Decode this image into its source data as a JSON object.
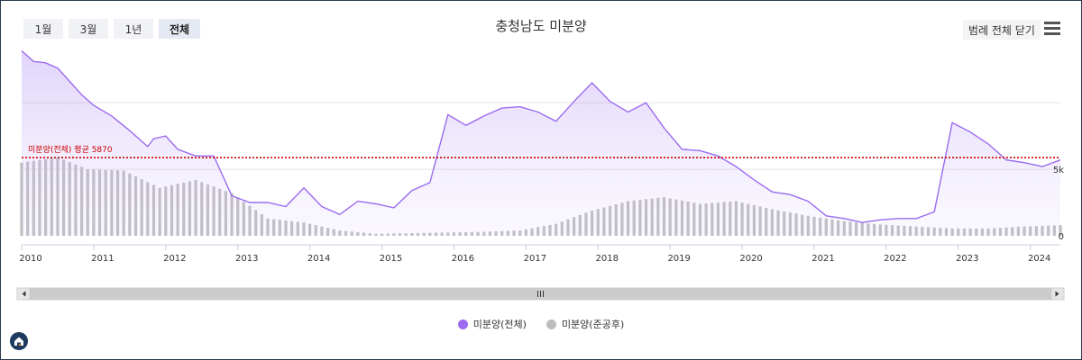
{
  "tabs": [
    {
      "label": "1월",
      "active": false
    },
    {
      "label": "3월",
      "active": false
    },
    {
      "label": "1년",
      "active": false
    },
    {
      "label": "전체",
      "active": true
    }
  ],
  "legend_toggle_label": "범례 전체 닫기",
  "menu_icon": "hamburger-icon",
  "home_icon": "home-icon",
  "colors": {
    "series_total": "#9b6bf0",
    "series_completed": "#bdbdbd",
    "average_line": "#cc0000"
  },
  "chart_data": {
    "type": "line",
    "title": "충청남도 미분양",
    "x_start": "2010-01",
    "x_end": "2024-06",
    "year_ticks": [
      "2010",
      "2011",
      "2012",
      "2013",
      "2014",
      "2015",
      "2016",
      "2017",
      "2018",
      "2019",
      "2020",
      "2021",
      "2022",
      "2023",
      "2024"
    ],
    "y_ticks": [
      {
        "value": 0,
        "label": "0"
      },
      {
        "value": 5000,
        "label": "5k"
      }
    ],
    "ylim": [
      0,
      14000
    ],
    "grid": true,
    "legend_position": "bottom-center",
    "average": {
      "value": 5870,
      "label": "미분양(전체) 평균 5870"
    },
    "series": [
      {
        "name": "미분양(전체)",
        "type": "area",
        "color": "#9b6bf0",
        "points": [
          [
            "2010-01",
            13900
          ],
          [
            "2010-03",
            13100
          ],
          [
            "2010-05",
            13000
          ],
          [
            "2010-07",
            12600
          ],
          [
            "2010-09",
            11600
          ],
          [
            "2010-11",
            10600
          ],
          [
            "2011-01",
            9800
          ],
          [
            "2011-04",
            9000
          ],
          [
            "2011-07",
            7900
          ],
          [
            "2011-10",
            6700
          ],
          [
            "2011-11",
            7300
          ],
          [
            "2012-01",
            7500
          ],
          [
            "2012-03",
            6500
          ],
          [
            "2012-06",
            6000
          ],
          [
            "2012-09",
            6000
          ],
          [
            "2012-12",
            3000
          ],
          [
            "2013-03",
            2500
          ],
          [
            "2013-06",
            2500
          ],
          [
            "2013-09",
            2200
          ],
          [
            "2013-12",
            3600
          ],
          [
            "2014-03",
            2200
          ],
          [
            "2014-06",
            1600
          ],
          [
            "2014-09",
            2600
          ],
          [
            "2014-12",
            2400
          ],
          [
            "2015-03",
            2100
          ],
          [
            "2015-06",
            3400
          ],
          [
            "2015-09",
            4000
          ],
          [
            "2015-12",
            9100
          ],
          [
            "2016-03",
            8300
          ],
          [
            "2016-06",
            9000
          ],
          [
            "2016-09",
            9600
          ],
          [
            "2016-12",
            9700
          ],
          [
            "2017-03",
            9300
          ],
          [
            "2017-06",
            8600
          ],
          [
            "2017-09",
            10100
          ],
          [
            "2017-12",
            11500
          ],
          [
            "2018-03",
            10100
          ],
          [
            "2018-06",
            9300
          ],
          [
            "2018-09",
            10000
          ],
          [
            "2018-12",
            8100
          ],
          [
            "2019-03",
            6500
          ],
          [
            "2019-06",
            6400
          ],
          [
            "2019-09",
            6000
          ],
          [
            "2019-12",
            5200
          ],
          [
            "2020-03",
            4200
          ],
          [
            "2020-06",
            3300
          ],
          [
            "2020-09",
            3100
          ],
          [
            "2020-12",
            2600
          ],
          [
            "2021-03",
            1500
          ],
          [
            "2021-06",
            1300
          ],
          [
            "2021-09",
            1000
          ],
          [
            "2021-12",
            1200
          ],
          [
            "2022-03",
            1300
          ],
          [
            "2022-06",
            1300
          ],
          [
            "2022-09",
            1800
          ],
          [
            "2022-12",
            8500
          ],
          [
            "2023-03",
            7800
          ],
          [
            "2023-06",
            6900
          ],
          [
            "2023-09",
            5700
          ],
          [
            "2023-12",
            5500
          ],
          [
            "2024-03",
            5200
          ],
          [
            "2024-06",
            5700
          ]
        ]
      },
      {
        "name": "미분양(준공후)",
        "type": "bar",
        "color": "#bdbdbd",
        "points": [
          [
            "2010-01",
            5500
          ],
          [
            "2010-07",
            5900
          ],
          [
            "2010-12",
            5000
          ],
          [
            "2011-06",
            4900
          ],
          [
            "2011-12",
            3600
          ],
          [
            "2012-06",
            4200
          ],
          [
            "2012-12",
            3200
          ],
          [
            "2013-06",
            1300
          ],
          [
            "2013-12",
            1000
          ],
          [
            "2014-06",
            400
          ],
          [
            "2014-12",
            150
          ],
          [
            "2015-06",
            200
          ],
          [
            "2015-12",
            250
          ],
          [
            "2016-06",
            300
          ],
          [
            "2016-12",
            400
          ],
          [
            "2017-06",
            900
          ],
          [
            "2017-12",
            1900
          ],
          [
            "2018-06",
            2600
          ],
          [
            "2018-12",
            2900
          ],
          [
            "2019-06",
            2400
          ],
          [
            "2019-12",
            2600
          ],
          [
            "2020-06",
            2000
          ],
          [
            "2020-12",
            1500
          ],
          [
            "2021-06",
            1100
          ],
          [
            "2021-12",
            850
          ],
          [
            "2022-06",
            700
          ],
          [
            "2022-12",
            550
          ],
          [
            "2023-06",
            550
          ],
          [
            "2023-12",
            700
          ],
          [
            "2024-06",
            800
          ]
        ]
      }
    ]
  }
}
